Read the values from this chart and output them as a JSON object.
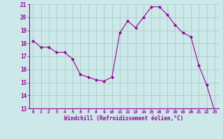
{
  "x": [
    0,
    1,
    2,
    3,
    4,
    5,
    6,
    7,
    8,
    9,
    10,
    11,
    12,
    13,
    14,
    15,
    16,
    17,
    18,
    19,
    20,
    21,
    22,
    23
  ],
  "y": [
    18.2,
    17.7,
    17.7,
    17.3,
    17.3,
    16.8,
    15.6,
    15.4,
    15.2,
    15.1,
    15.4,
    18.8,
    19.7,
    19.2,
    20.0,
    20.8,
    20.8,
    20.2,
    19.4,
    18.8,
    18.5,
    16.3,
    14.8,
    12.8
  ],
  "line_color": "#990099",
  "marker": "D",
  "marker_size": 2,
  "bg_color": "#cce8e8",
  "grid_color": "#aacccc",
  "xlabel": "Windchill (Refroidissement éolien,°C)",
  "tick_color": "#990099",
  "axis_color": "#990099",
  "ylim": [
    13,
    21
  ],
  "xlim": [
    -0.5,
    23.5
  ],
  "yticks": [
    13,
    14,
    15,
    16,
    17,
    18,
    19,
    20,
    21
  ],
  "xticks": [
    0,
    1,
    2,
    3,
    4,
    5,
    6,
    7,
    8,
    9,
    10,
    11,
    12,
    13,
    14,
    15,
    16,
    17,
    18,
    19,
    20,
    21,
    22,
    23
  ],
  "figsize": [
    3.2,
    2.0
  ],
  "dpi": 100
}
